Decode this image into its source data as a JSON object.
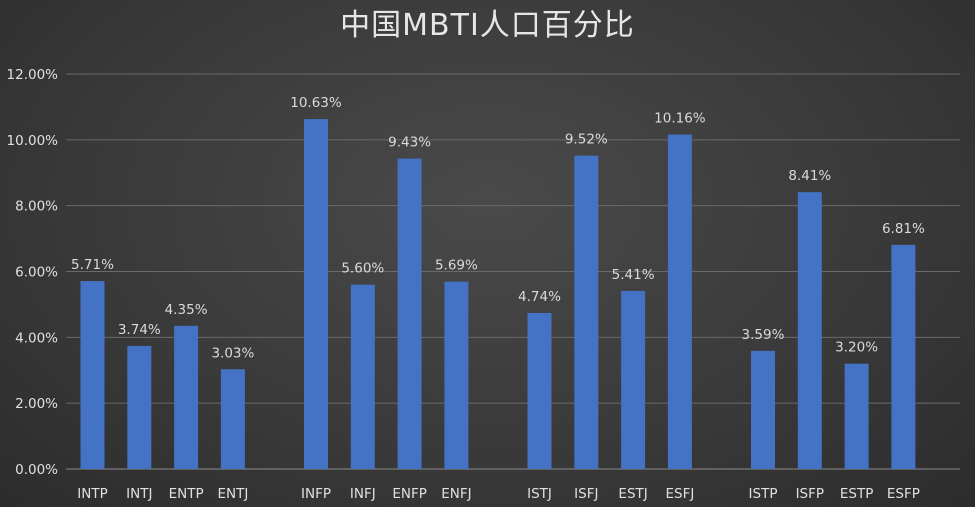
{
  "chart_data": {
    "type": "bar",
    "title": "中国MBTI人口百分比",
    "xlabel": "",
    "ylabel": "",
    "ylim": [
      0,
      12
    ],
    "ytick_labels": [
      "0.00%",
      "2.00%",
      "4.00%",
      "6.00%",
      "8.00%",
      "10.00%",
      "12.00%"
    ],
    "grid": true,
    "bar_color": "#4472c4",
    "categories": [
      "INTP",
      "INTJ",
      "ENTP",
      "ENTJ",
      "INFP",
      "INFJ",
      "ENFP",
      "ENFJ",
      "ISTJ",
      "ISFJ",
      "ESTJ",
      "ESFJ",
      "ISTP",
      "ISFP",
      "ESTP",
      "ESFP"
    ],
    "values": [
      5.71,
      3.74,
      4.35,
      3.03,
      10.63,
      5.6,
      9.43,
      5.69,
      4.74,
      9.52,
      5.41,
      10.16,
      3.59,
      8.41,
      3.2,
      6.81
    ],
    "data_labels": [
      "5.71%",
      "3.74%",
      "4.35%",
      "3.03%",
      "10.63%",
      "5.60%",
      "9.43%",
      "5.69%",
      "4.74%",
      "9.52%",
      "5.41%",
      "10.16%",
      "3.59%",
      "8.41%",
      "3.20%",
      "6.81%"
    ]
  }
}
